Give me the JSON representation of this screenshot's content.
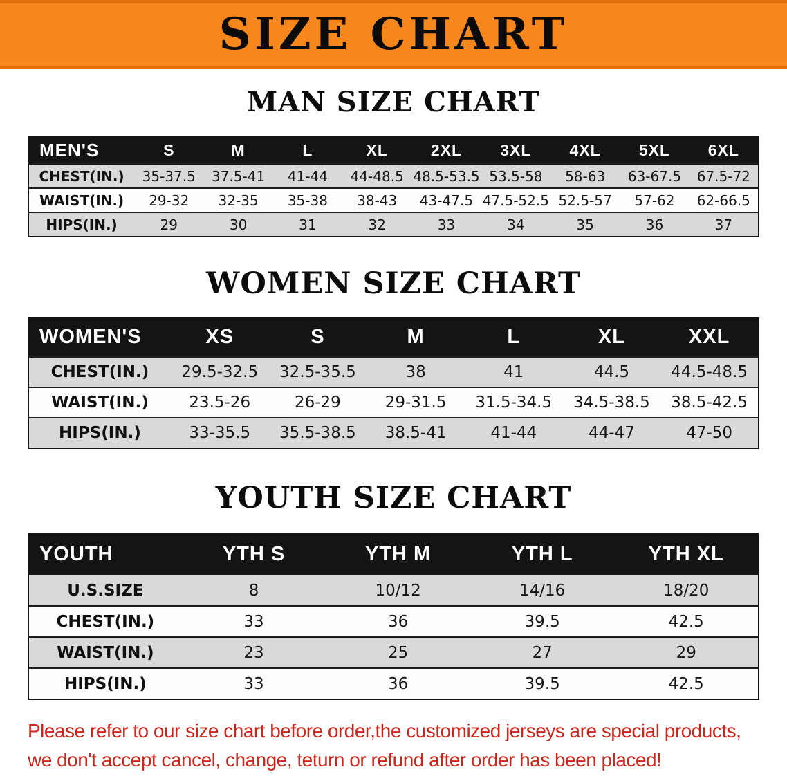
{
  "banner": {
    "title": "SIZE CHART",
    "bg_color": "#f6871d"
  },
  "sections": [
    {
      "id": "men",
      "heading": "MAN SIZE CHART",
      "table": {
        "header": [
          "MEN'S",
          "S",
          "M",
          "L",
          "XL",
          "2XL",
          "3XL",
          "4XL",
          "5XL",
          "6XL"
        ],
        "rows": [
          {
            "label": "CHEST(IN.)",
            "values": [
              "35-37.5",
              "37.5-41",
              "41-44",
              "44-48.5",
              "48.5-53.5",
              "53.5-58",
              "58-63",
              "63-67.5",
              "67.5-72"
            ]
          },
          {
            "label": "WAIST(IN.)",
            "values": [
              "29-32",
              "32-35",
              "35-38",
              "38-43",
              "43-47.5",
              "47.5-52.5",
              "52.5-57",
              "57-62",
              "62-66.5"
            ]
          },
          {
            "label": "HIPS(IN.)",
            "values": [
              "29",
              "30",
              "31",
              "32",
              "33",
              "34",
              "35",
              "36",
              "37"
            ]
          }
        ]
      }
    },
    {
      "id": "women",
      "heading": "WOMEN SIZE CHART",
      "table": {
        "header": [
          "WOMEN'S",
          "XS",
          "S",
          "M",
          "L",
          "XL",
          "XXL"
        ],
        "rows": [
          {
            "label": "CHEST(IN.)",
            "values": [
              "29.5-32.5",
              "32.5-35.5",
              "38",
              "41",
              "44.5",
              "44.5-48.5"
            ]
          },
          {
            "label": "WAIST(IN.)",
            "values": [
              "23.5-26",
              "26-29",
              "29-31.5",
              "31.5-34.5",
              "34.5-38.5",
              "38.5-42.5"
            ]
          },
          {
            "label": "HIPS(IN.)",
            "values": [
              "33-35.5",
              "35.5-38.5",
              "38.5-41",
              "41-44",
              "44-47",
              "47-50"
            ]
          }
        ]
      }
    },
    {
      "id": "youth",
      "heading": "YOUTH SIZE CHART",
      "table": {
        "header": [
          "YOUTH",
          "YTH S",
          "YTH M",
          "YTH L",
          "YTH XL"
        ],
        "rows": [
          {
            "label": "U.S.SIZE",
            "values": [
              "8",
              "10/12",
              "14/16",
              "18/20"
            ]
          },
          {
            "label": "CHEST(IN.)",
            "values": [
              "33",
              "36",
              "39.5",
              "42.5"
            ]
          },
          {
            "label": "WAIST(IN.)",
            "values": [
              "23",
              "25",
              "27",
              "29"
            ]
          },
          {
            "label": "HIPS(IN.)",
            "values": [
              "33",
              "36",
              "39.5",
              "42.5"
            ]
          }
        ]
      }
    }
  ],
  "disclaimer": {
    "line1": "Please refer to our size chart before order,the customized jerseys are special products,",
    "line2": "we don't accept cancel, change, teturn or refund after order has been placed!",
    "color": "#cb271f"
  }
}
